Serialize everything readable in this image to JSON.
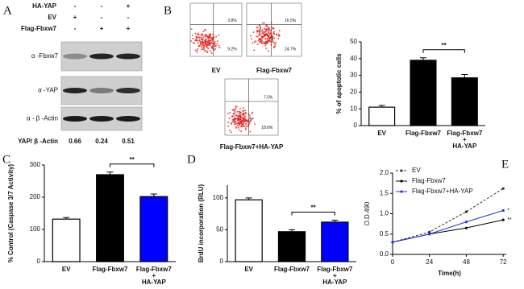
{
  "blot": {
    "label": "A",
    "conditions": [
      {
        "name": "HA-YAP",
        "signs": [
          "-",
          "-",
          "+"
        ]
      },
      {
        "name": "EV",
        "signs": [
          "+",
          "-",
          "-"
        ]
      },
      {
        "name": "Flag-Fbxw7",
        "signs": [
          "-",
          "+",
          "+"
        ]
      }
    ],
    "bands": [
      "α -Fbxw7",
      "α -YAP",
      "α - β -Actin"
    ],
    "ratio_label": "YAP/ β -Actin",
    "ratios": [
      0.66,
      0.24,
      0.51
    ]
  },
  "flow": {
    "label": "B",
    "plots": [
      {
        "label": "EV",
        "upper_right": "3.8%",
        "lower_right": "9.2%"
      },
      {
        "label": "Flag-Fbxw7",
        "upper_right": "16.5%",
        "lower_right": "24.7%"
      },
      {
        "label": "Flag-Fbxw7+HA-YAP",
        "upper_right": "7.5%",
        "lower_right": "18.6%"
      }
    ]
  },
  "chart_data": [
    {
      "type": "bar",
      "ylabel": "% of apoptotic cells",
      "categories": [
        "EV",
        "Flag-Fbxw7",
        "Flag-Fbxw7\n+\nHA-YAP"
      ],
      "values": [
        11,
        39,
        28.5
      ],
      "errors": [
        1,
        1.5,
        2
      ],
      "colors": [
        "#ffffff",
        "#000000",
        "#000000"
      ],
      "ylim": [
        0,
        50
      ],
      "yticks": [
        0,
        10,
        20,
        30,
        40,
        50
      ],
      "annotation": "**"
    },
    {
      "type": "bar",
      "label": "C",
      "ylabel": "% Control (Caspase 3/7 Activity)",
      "categories": [
        "EV",
        "Flag-Fbxw7",
        "Flag-Fbxw7\n+\nHA-YAP"
      ],
      "values": [
        132,
        270,
        202
      ],
      "errors": [
        5,
        8,
        8
      ],
      "colors": [
        "#ffffff",
        "#000000",
        "#0000ff"
      ],
      "ylim": [
        0,
        300
      ],
      "yticks": [
        0,
        100,
        200,
        300
      ],
      "annotation": "**"
    },
    {
      "type": "bar",
      "label": "D",
      "ylabel": "BrdU incorporation (RLU)",
      "categories": [
        "EV",
        "Flag-Fbxw7",
        "Flag-Fbxw7\n+\nHA-YAP"
      ],
      "values": [
        97,
        47,
        62
      ],
      "errors": [
        3,
        3,
        3
      ],
      "colors": [
        "#ffffff",
        "#000000",
        "#0000ff"
      ],
      "ylim": [
        0,
        120
      ],
      "yticks": [
        0,
        50,
        100
      ],
      "annotation": "**"
    },
    {
      "type": "line",
      "label": "E",
      "xlabel": "Time(h)",
      "ylabel": "O.D.490",
      "x": [
        0,
        24,
        48,
        72
      ],
      "xlim": [
        0,
        74
      ],
      "xticks": [
        0,
        24,
        48,
        72
      ],
      "ylim": [
        0,
        2.0
      ],
      "yticks": [
        {
          "value": 0,
          "label": "0.0"
        },
        {
          "value": 0.5,
          "label": "0.5"
        },
        {
          "value": 1.0,
          "label": "1.0"
        },
        {
          "value": 1.5,
          "label": "1.5"
        },
        {
          "value": 2.0,
          "label": "2.0"
        }
      ],
      "series": [
        {
          "name": "EV",
          "color": "#333333",
          "line_style": "dashed",
          "values": [
            0.3,
            0.55,
            1.05,
            1.62
          ]
        },
        {
          "name": "Flag-Fbxw7",
          "color": "#000000",
          "line_style": "solid",
          "values": [
            0.3,
            0.5,
            0.65,
            0.85
          ]
        },
        {
          "name": "Flag-Fbxw7+HA-YAP",
          "color": "#2233dd",
          "line_style": "solid",
          "values": [
            0.3,
            0.5,
            0.8,
            1.08
          ]
        }
      ],
      "annotations": [
        "**",
        "*"
      ]
    }
  ]
}
